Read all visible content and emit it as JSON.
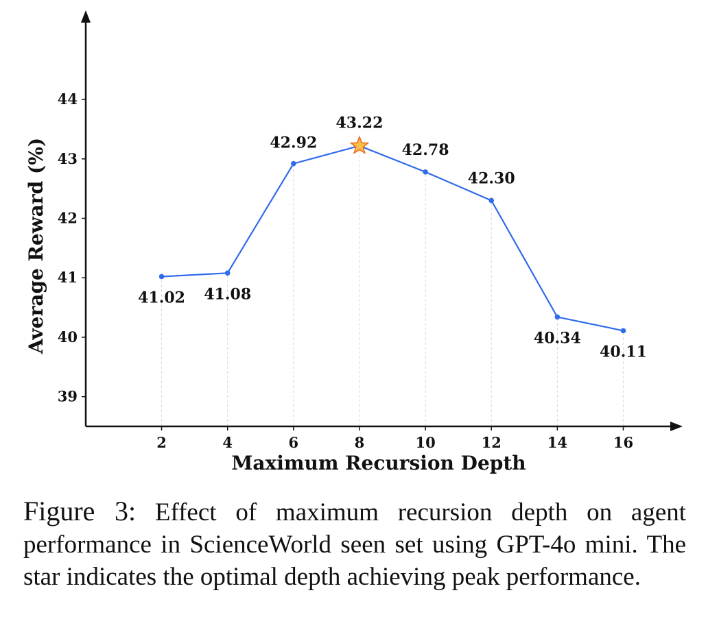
{
  "chart_data": {
    "type": "line",
    "x": [
      2,
      4,
      6,
      8,
      10,
      12,
      14,
      16
    ],
    "series": [
      {
        "name": "Average Reward",
        "values": [
          41.02,
          41.08,
          42.92,
          43.22,
          42.78,
          42.3,
          40.34,
          40.11
        ]
      }
    ],
    "data_labels": [
      "41.02",
      "41.08",
      "42.92",
      "43.22",
      "42.78",
      "42.30",
      "40.34",
      "40.11"
    ],
    "highlight": {
      "x": 8,
      "value": 43.22,
      "marker": "star"
    },
    "xlabel": "Maximum Recursion Depth",
    "ylabel": "Average Reward (%)",
    "xticks": [
      "2",
      "4",
      "6",
      "8",
      "10",
      "12",
      "14",
      "16"
    ],
    "yticks": [
      "39",
      "40",
      "41",
      "42",
      "43",
      "44"
    ],
    "ytick_values": [
      39,
      40,
      41,
      42,
      43,
      44
    ],
    "ylim": [
      38.5,
      45.5
    ],
    "xlim": [
      -0.3,
      17.8
    ],
    "grid": "vertical dashed",
    "colors": {
      "line": "#2f6bea",
      "star_fill": "#f7c04a",
      "star_stroke": "#ef6c1a",
      "grid": "#d9d9d9"
    }
  },
  "caption": {
    "label": "Figure 3:",
    "text": "Effect of maximum recursion depth on agent performance in ScienceWorld seen set using GPT-4o mini.  The star indicates the optimal depth achieving peak performance."
  }
}
